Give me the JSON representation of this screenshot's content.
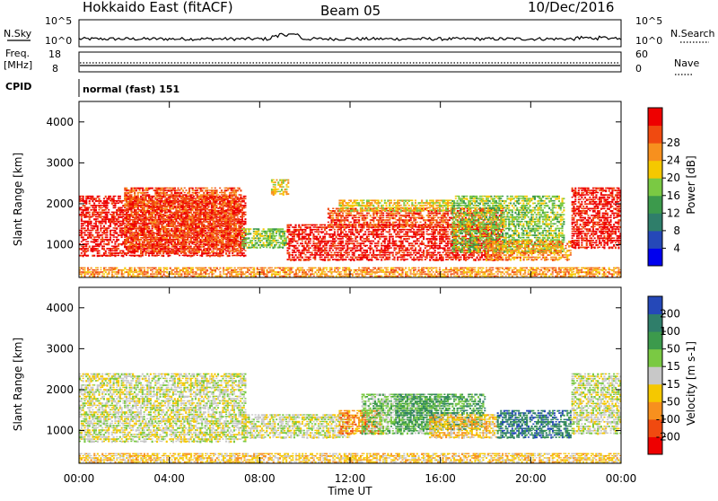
{
  "header": {
    "title": "Hokkaido East (fitACF)",
    "beam": "Beam 05",
    "date": "10/Dec/2016"
  },
  "panels": {
    "nsky": {
      "left_label": "N.Sky",
      "left_top": "10^5",
      "left_bottom": "10^0",
      "right_top": "10^5",
      "right_bottom": "10^0",
      "right_label": "N.Search"
    },
    "freq": {
      "label_line1": "Freq.",
      "label_line2": "[MHz]",
      "left_top": "18",
      "left_bottom": "8",
      "right_top": "60",
      "right_bottom": "0",
      "right_label": "Nave"
    },
    "cpid": {
      "label": "CPID",
      "value": "normal (fast) 151"
    }
  },
  "colors": {
    "power_scale": [
      "#0000ee",
      "#2548b8",
      "#2f7e6a",
      "#3c9a4c",
      "#7ac943",
      "#f5c800",
      "#f7901e",
      "#f04a10",
      "#ee0000"
    ],
    "velocity_scale": [
      "#ee0000",
      "#f04a10",
      "#f7901e",
      "#f5c800",
      "#c8c8c8",
      "#7ac943",
      "#3c9a4c",
      "#2f7e6a",
      "#2548b8"
    ]
  },
  "chart_data": [
    {
      "type": "heatmap",
      "name_label": "power",
      "ylabel": "Slant Range [km]",
      "ylim": [
        200,
        4500
      ],
      "yticks": [
        1000,
        2000,
        3000,
        4000
      ],
      "xlim": [
        0,
        24
      ],
      "colorbar": {
        "label": "Power [dB]",
        "ticks": [
          "4",
          "8",
          "12",
          "16",
          "20",
          "24",
          "28"
        ]
      },
      "regions": [
        {
          "t0": 0.0,
          "t1": 7.4,
          "r0": 700,
          "r1": 2200,
          "level": 8
        },
        {
          "t0": 2.0,
          "t1": 7.2,
          "r0": 800,
          "r1": 2400,
          "level": 7
        },
        {
          "t0": 7.2,
          "t1": 9.2,
          "r0": 900,
          "r1": 1400,
          "level": 4
        },
        {
          "t0": 8.5,
          "t1": 9.3,
          "r0": 2200,
          "r1": 2600,
          "level": 5
        },
        {
          "t0": 9.2,
          "t1": 18.8,
          "r0": 600,
          "r1": 1500,
          "level": 8
        },
        {
          "t0": 11.0,
          "t1": 18.8,
          "r0": 1400,
          "r1": 1900,
          "level": 7
        },
        {
          "t0": 11.5,
          "t1": 16.5,
          "r0": 1800,
          "r1": 2100,
          "level": 5
        },
        {
          "t0": 16.5,
          "t1": 21.5,
          "r0": 800,
          "r1": 2200,
          "level": 4
        },
        {
          "t0": 18.0,
          "t1": 21.8,
          "r0": 600,
          "r1": 1100,
          "level": 6
        },
        {
          "t0": 21.8,
          "t1": 24.0,
          "r0": 900,
          "r1": 2400,
          "level": 8
        },
        {
          "t0": 0.0,
          "t1": 24.0,
          "r0": 200,
          "r1": 450,
          "level": 6
        }
      ]
    },
    {
      "type": "heatmap",
      "name_label": "velocity",
      "ylabel": "Slant Range [km]",
      "ylim": [
        200,
        4500
      ],
      "yticks": [
        1000,
        2000,
        3000,
        4000
      ],
      "xlim": [
        0,
        24
      ],
      "xticks": [
        "00:00",
        "04:00",
        "08:00",
        "12:00",
        "16:00",
        "20:00",
        "00:00"
      ],
      "xlabel": "Time UT",
      "colorbar": {
        "label": "Velocity [m s-1]",
        "ticks": [
          "-200",
          "-100",
          "-50",
          "-15",
          "15",
          "50",
          "100",
          "200"
        ]
      },
      "regions": [
        {
          "t0": 0.0,
          "t1": 7.4,
          "r0": 700,
          "r1": 2400,
          "level": 4
        },
        {
          "t0": 7.2,
          "t1": 12.0,
          "r0": 800,
          "r1": 1400,
          "level": 4
        },
        {
          "t0": 11.5,
          "t1": 13.5,
          "r0": 900,
          "r1": 1500,
          "level": 2
        },
        {
          "t0": 12.5,
          "t1": 16.0,
          "r0": 900,
          "r1": 1900,
          "level": 5
        },
        {
          "t0": 14.0,
          "t1": 18.0,
          "r0": 1000,
          "r1": 1900,
          "level": 6
        },
        {
          "t0": 15.5,
          "t1": 18.5,
          "r0": 800,
          "r1": 1400,
          "level": 3
        },
        {
          "t0": 18.5,
          "t1": 21.8,
          "r0": 800,
          "r1": 1500,
          "level": 7
        },
        {
          "t0": 21.8,
          "t1": 24.0,
          "r0": 900,
          "r1": 2400,
          "level": 4
        },
        {
          "t0": 0.0,
          "t1": 24.0,
          "r0": 200,
          "r1": 450,
          "level": 3
        }
      ]
    }
  ]
}
